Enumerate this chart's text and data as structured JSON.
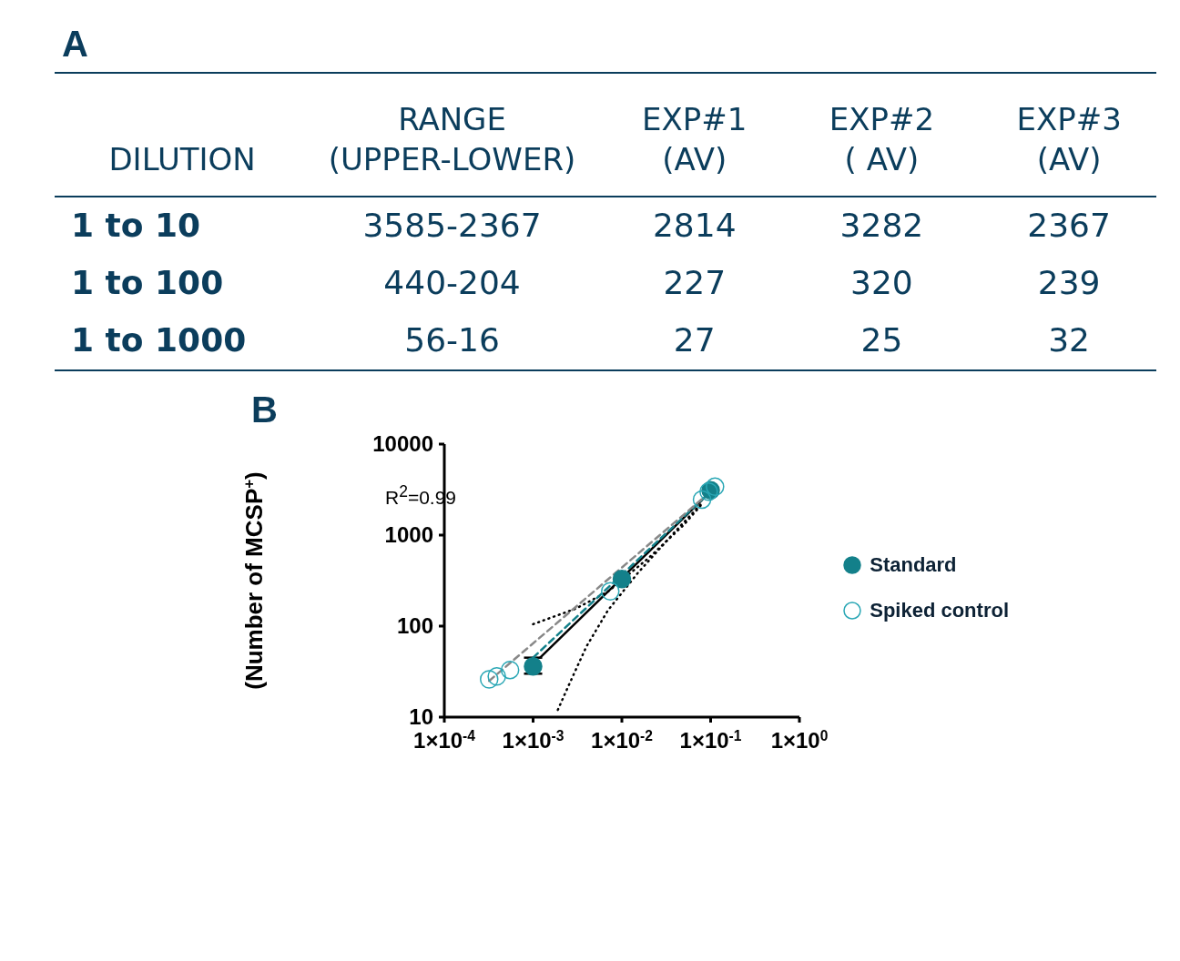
{
  "chart_data": [
    {
      "type": "other",
      "title": "A",
      "annotations": [
        "DILUTION",
        "RANGE\n(UPPER-LOWER)",
        "EXP#1\n(AV)",
        "EXP#2\n( AV)",
        "EXP#3\n(AV)",
        "1 to 10",
        "3585-2367",
        "2814",
        "3282",
        "2367",
        "1 to 100",
        "440-204",
        "227",
        "320",
        "239",
        "1 to 1000",
        "56-16",
        "27",
        "25",
        "32"
      ]
    },
    {
      "type": "scatter",
      "title": "B",
      "ylabel": "(Number of MCSP$^{+}$)",
      "annotations": [
        "R$^{2}$=0.99"
      ],
      "log": "xy",
      "legend": "right",
      "xlim": [
        0.0001,
        1
      ],
      "xticks": [
        {
          "value": 0.0001,
          "label": "1×10$^{-4}$"
        },
        {
          "value": 0.001,
          "label": "1×10$^{-3}$"
        },
        {
          "value": 0.01,
          "label": "1×10$^{-2}$"
        },
        {
          "value": 0.1,
          "label": "1×10$^{-1}$"
        },
        {
          "value": 1,
          "label": "1×10$^{0}$"
        }
      ],
      "ylim": [
        10,
        10000
      ],
      "yticks": [
        10,
        100,
        1000,
        10000
      ],
      "series": [
        {
          "type": "line",
          "color": "#000000",
          "line_style": "dotted",
          "x": [
            0.001,
            0.003,
            0.007,
            0.02,
            0.05,
            0.08
          ],
          "values": [
            105,
            155,
            240,
            560,
            1300,
            2200
          ]
        },
        {
          "type": "line",
          "color": "#000000",
          "line_style": "dotted",
          "x": [
            0.0019,
            0.0025,
            0.004,
            0.007,
            0.015,
            0.04,
            0.08
          ],
          "values": [
            12,
            22,
            60,
            150,
            380,
            1100,
            2250
          ]
        },
        {
          "type": "line",
          "color": "#000000",
          "line_style": "solid",
          "x": [
            0.0012,
            0.08
          ],
          "values": [
            45,
            2430
          ]
        },
        {
          "type": "line",
          "color": "#13808a",
          "line_style": "dashed",
          "x": [
            0.001,
            0.1
          ],
          "values": [
            45,
            3000
          ]
        },
        {
          "type": "line",
          "color": "#888888",
          "line_style": "dashed",
          "x": [
            0.00032,
            0.1
          ],
          "values": [
            25,
            3000
          ]
        },
        {
          "name": "Standard",
          "type": "scatter",
          "color": "#13808a",
          "marker": "circle",
          "x": [
            0.001,
            0.01,
            0.1
          ],
          "values": [
            36,
            330,
            3100
          ],
          "errors": [
            [
              30,
              45
            ],
            null,
            null
          ]
        },
        {
          "name": "Spiked control",
          "type": "scatter",
          "color": "#2aa7b5",
          "marker": "circle",
          "x": [
            0.00032,
            0.00039,
            0.00055,
            0.0074,
            0.08,
            0.095,
            0.112
          ],
          "values": [
            26,
            28,
            33,
            241,
            2460,
            3000,
            3400
          ]
        }
      ]
    }
  ]
}
